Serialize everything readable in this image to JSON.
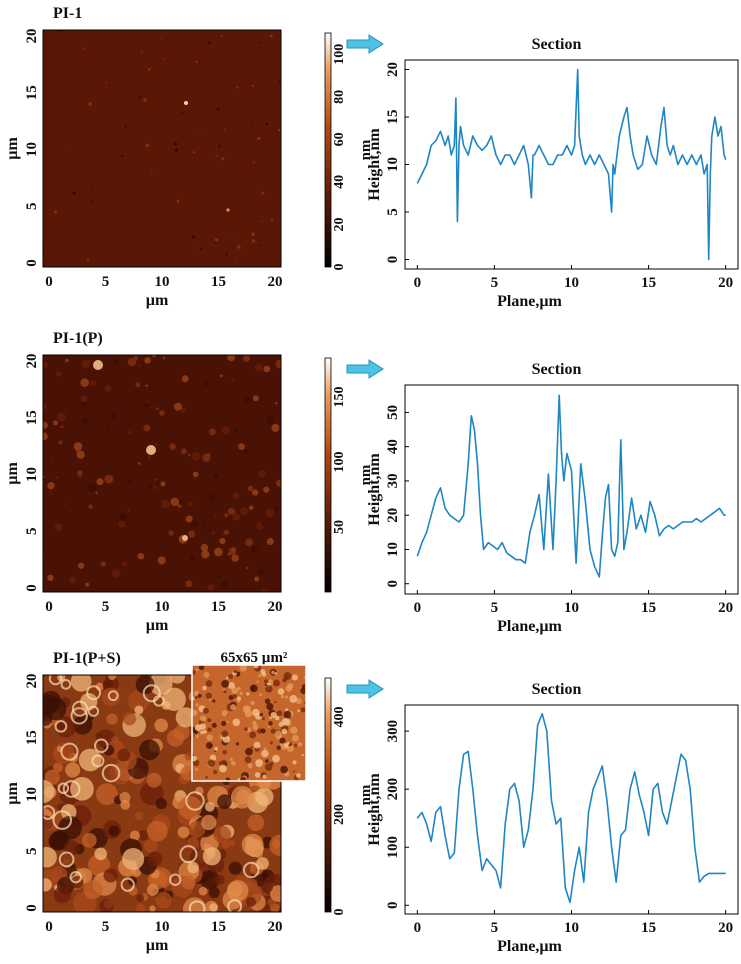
{
  "panels": [
    {
      "title": "PI-1",
      "inset_label": "",
      "afm": {
        "axis_label": "µm",
        "ticks": [
          "0",
          "5",
          "10",
          "15",
          "20"
        ],
        "base": "#5a1706",
        "speckle": "low"
      },
      "colorbar": {
        "unit": "nm",
        "ticks": [
          "0",
          "20",
          "40",
          "60",
          "80",
          "100"
        ],
        "max": 110
      },
      "section": {
        "title": "Section",
        "xlabel": "Plane,µm",
        "ylabel": "Height,nm",
        "xticks": [
          "0",
          "5",
          "10",
          "15",
          "20"
        ],
        "yticks": [
          "0",
          "5",
          "10",
          "15",
          "20"
        ]
      }
    },
    {
      "title": "PI-1(P)",
      "inset_label": "",
      "afm": {
        "axis_label": "µm",
        "ticks": [
          "0",
          "5",
          "10",
          "15",
          "20"
        ],
        "base": "#4a1204",
        "speckle": "medium"
      },
      "colorbar": {
        "unit": "nm",
        "ticks": [
          "50",
          "100",
          "150"
        ],
        "max": 180
      },
      "section": {
        "title": "Section",
        "xlabel": "Plane,µm",
        "ylabel": "Height,nm",
        "xticks": [
          "0",
          "5",
          "10",
          "15",
          "20"
        ],
        "yticks": [
          "0",
          "10",
          "20",
          "30",
          "40",
          "50"
        ]
      }
    },
    {
      "title": "PI-1(P+S)",
      "inset_label": "65x65 µm²",
      "afm": {
        "axis_label": "µm",
        "ticks": [
          "0",
          "5",
          "10",
          "15",
          "20"
        ],
        "base": "#8a3a12",
        "speckle": "high"
      },
      "colorbar": {
        "unit": "nm",
        "ticks": [
          "0",
          "200",
          "400"
        ],
        "max": 480
      },
      "section": {
        "title": "Section",
        "xlabel": "Plane,µm",
        "ylabel": "Height,nm",
        "xticks": [
          "0",
          "5",
          "10",
          "15",
          "20"
        ],
        "yticks": [
          "0",
          "100",
          "200",
          "300"
        ]
      }
    }
  ],
  "chart_data": [
    {
      "type": "line",
      "title": "Section",
      "xlabel": "Plane,µm",
      "ylabel": "Height,nm",
      "xlim": [
        -0.8,
        20.8
      ],
      "ylim": [
        -1,
        21
      ],
      "series": [
        {
          "color": "#1f86c4",
          "x": [
            0,
            0.3,
            0.6,
            0.9,
            1.2,
            1.5,
            1.8,
            2.0,
            2.2,
            2.4,
            2.5,
            2.6,
            2.7,
            2.8,
            3.0,
            3.3,
            3.6,
            3.9,
            4.2,
            4.5,
            4.8,
            5.1,
            5.4,
            5.7,
            6.0,
            6.3,
            6.6,
            6.9,
            7.2,
            7.4,
            7.5,
            7.6,
            7.9,
            8.2,
            8.5,
            8.8,
            9.1,
            9.4,
            9.7,
            10.0,
            10.2,
            10.4,
            10.5,
            10.7,
            10.9,
            11.2,
            11.5,
            11.8,
            12.1,
            12.4,
            12.6,
            12.7,
            12.8,
            13.1,
            13.4,
            13.6,
            13.8,
            14.0,
            14.3,
            14.6,
            14.9,
            15.2,
            15.5,
            15.8,
            16.0,
            16.2,
            16.4,
            16.6,
            16.9,
            17.2,
            17.5,
            17.8,
            18.1,
            18.4,
            18.6,
            18.8,
            18.9,
            19.0,
            19.1,
            19.3,
            19.5,
            19.7,
            19.9,
            20.0
          ],
          "y": [
            8,
            9,
            10,
            12,
            12.5,
            13.5,
            12,
            13,
            11,
            12,
            17,
            4,
            12,
            14,
            12,
            11,
            13,
            12,
            11.5,
            12,
            13,
            11,
            10,
            11,
            11,
            10,
            11,
            12,
            10,
            6.5,
            11,
            11,
            12,
            11,
            10,
            10,
            11,
            11,
            12,
            11,
            12,
            20,
            13,
            11,
            10,
            11,
            10,
            11,
            10,
            9,
            5,
            10,
            9,
            13,
            15,
            16,
            13,
            11,
            9.5,
            10,
            13,
            11,
            10,
            14,
            16,
            12,
            11,
            12,
            10,
            11,
            10,
            11,
            10,
            11,
            9,
            10,
            0,
            9,
            13,
            15,
            13,
            14,
            11,
            10.5
          ]
        }
      ]
    },
    {
      "type": "line",
      "title": "Section",
      "xlabel": "Plane,µm",
      "ylabel": "Height,nm",
      "xlim": [
        -0.8,
        20.8
      ],
      "ylim": [
        -3,
        58
      ],
      "series": [
        {
          "color": "#1f86c4",
          "x": [
            0,
            0.3,
            0.6,
            0.9,
            1.2,
            1.5,
            1.8,
            2.1,
            2.4,
            2.7,
            3.0,
            3.3,
            3.5,
            3.7,
            3.9,
            4.1,
            4.3,
            4.6,
            4.9,
            5.2,
            5.5,
            5.8,
            6.1,
            6.4,
            6.7,
            7.0,
            7.3,
            7.6,
            7.9,
            8.2,
            8.5,
            8.8,
            9.0,
            9.2,
            9.35,
            9.5,
            9.7,
            10.0,
            10.3,
            10.6,
            10.9,
            11.2,
            11.5,
            11.8,
            12.0,
            12.2,
            12.4,
            12.6,
            12.8,
            13.0,
            13.2,
            13.4,
            13.6,
            13.9,
            14.2,
            14.5,
            14.8,
            15.1,
            15.4,
            15.7,
            16.0,
            16.3,
            16.6,
            16.9,
            17.2,
            17.5,
            17.8,
            18.1,
            18.4,
            18.7,
            19.0,
            19.3,
            19.6,
            19.9,
            20.0
          ],
          "y": [
            8,
            12,
            15,
            20,
            25,
            28,
            22,
            20,
            19,
            18,
            20,
            35,
            49,
            45,
            35,
            20,
            10,
            12,
            11,
            10,
            12,
            9,
            8,
            7,
            7,
            6,
            15,
            20,
            26,
            10,
            32,
            10,
            30,
            55,
            38,
            30,
            38,
            33,
            6,
            35,
            24,
            10,
            5,
            2,
            14,
            25,
            29,
            10,
            8,
            12,
            42,
            10,
            15,
            25,
            16,
            20,
            15,
            24,
            20,
            14,
            16,
            17,
            16,
            17,
            18,
            18,
            18,
            19,
            18,
            19,
            20,
            21,
            22,
            20,
            20
          ]
        }
      ]
    },
    {
      "type": "line",
      "title": "Section",
      "xlabel": "Plane,µm",
      "ylabel": "Height,nm",
      "xlim": [
        -0.8,
        20.8
      ],
      "ylim": [
        -15,
        345
      ],
      "series": [
        {
          "color": "#1f86c4",
          "x": [
            0,
            0.3,
            0.6,
            0.9,
            1.2,
            1.5,
            1.8,
            2.1,
            2.4,
            2.7,
            3.0,
            3.3,
            3.6,
            3.9,
            4.2,
            4.5,
            4.8,
            5.1,
            5.4,
            5.7,
            6.0,
            6.3,
            6.6,
            6.9,
            7.2,
            7.5,
            7.8,
            8.1,
            8.4,
            8.7,
            9.0,
            9.3,
            9.6,
            9.9,
            10.2,
            10.5,
            10.8,
            11.1,
            11.4,
            11.7,
            12.0,
            12.3,
            12.6,
            12.9,
            13.2,
            13.5,
            13.8,
            14.1,
            14.4,
            14.7,
            15.0,
            15.3,
            15.6,
            15.9,
            16.2,
            16.5,
            16.8,
            17.1,
            17.4,
            17.7,
            18.0,
            18.3,
            18.6,
            18.9,
            19.2,
            19.5,
            19.8,
            20.0
          ],
          "y": [
            150,
            160,
            140,
            110,
            160,
            170,
            120,
            80,
            90,
            200,
            260,
            265,
            200,
            120,
            60,
            80,
            70,
            60,
            30,
            140,
            200,
            210,
            180,
            100,
            130,
            200,
            310,
            330,
            300,
            180,
            140,
            150,
            30,
            5,
            60,
            100,
            40,
            160,
            200,
            220,
            240,
            180,
            100,
            40,
            120,
            130,
            200,
            230,
            190,
            160,
            120,
            200,
            210,
            160,
            140,
            180,
            220,
            260,
            250,
            200,
            100,
            40,
            50,
            55,
            55,
            55,
            55,
            55
          ]
        }
      ]
    }
  ]
}
